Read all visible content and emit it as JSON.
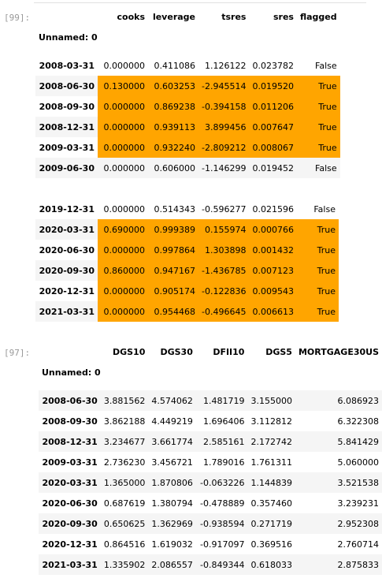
{
  "cell99": {
    "prompt": "[99]:",
    "index_name": "Unnamed: 0",
    "columns": [
      "cooks",
      "leverage",
      "tsres",
      "sres",
      "flagged"
    ],
    "rows": [
      {
        "index": "2008-03-31",
        "cells": [
          "0.000000",
          "0.411086",
          "1.126122",
          "0.023782",
          "False"
        ],
        "hl": false,
        "stripe": false
      },
      {
        "index": "2008-06-30",
        "cells": [
          "0.130000",
          "0.603253",
          "-2.945514",
          "0.019520",
          "True"
        ],
        "hl": true,
        "stripe": true
      },
      {
        "index": "2008-09-30",
        "cells": [
          "0.000000",
          "0.869238",
          "-0.394158",
          "0.011206",
          "True"
        ],
        "hl": true,
        "stripe": false
      },
      {
        "index": "2008-12-31",
        "cells": [
          "0.000000",
          "0.939113",
          "3.899456",
          "0.007647",
          "True"
        ],
        "hl": true,
        "stripe": true
      },
      {
        "index": "2009-03-31",
        "cells": [
          "0.000000",
          "0.932240",
          "-2.809212",
          "0.008067",
          "True"
        ],
        "hl": true,
        "stripe": false
      },
      {
        "index": "2009-06-30",
        "cells": [
          "0.000000",
          "0.606000",
          "-1.146299",
          "0.019452",
          "False"
        ],
        "hl": false,
        "stripe": true
      }
    ],
    "rows2": [
      {
        "index": "2019-12-31",
        "cells": [
          "0.000000",
          "0.514343",
          "-0.596277",
          "0.021596",
          "False"
        ],
        "hl": false,
        "stripe": false
      },
      {
        "index": "2020-03-31",
        "cells": [
          "0.690000",
          "0.999389",
          "0.155974",
          "0.000766",
          "True"
        ],
        "hl": true,
        "stripe": true
      },
      {
        "index": "2020-06-30",
        "cells": [
          "0.000000",
          "0.997864",
          "1.303898",
          "0.001432",
          "True"
        ],
        "hl": true,
        "stripe": false
      },
      {
        "index": "2020-09-30",
        "cells": [
          "0.860000",
          "0.947167",
          "-1.436785",
          "0.007123",
          "True"
        ],
        "hl": true,
        "stripe": true
      },
      {
        "index": "2020-12-31",
        "cells": [
          "0.000000",
          "0.905174",
          "-0.122836",
          "0.009543",
          "True"
        ],
        "hl": true,
        "stripe": false
      },
      {
        "index": "2021-03-31",
        "cells": [
          "0.000000",
          "0.954468",
          "-0.496645",
          "0.006613",
          "True"
        ],
        "hl": true,
        "stripe": true
      }
    ]
  },
  "cell97": {
    "prompt": "[97]:",
    "index_name": "Unnamed: 0",
    "columns": [
      "DGS10",
      "DGS30",
      "DFII10",
      "DGS5",
      "MORTGAGE30US"
    ],
    "rows": [
      {
        "index": "2008-06-30",
        "cells": [
          "3.881562",
          "4.574062",
          "1.481719",
          "3.155000",
          "6.086923"
        ]
      },
      {
        "index": "2008-09-30",
        "cells": [
          "3.862188",
          "4.449219",
          "1.696406",
          "3.112812",
          "6.322308"
        ]
      },
      {
        "index": "2008-12-31",
        "cells": [
          "3.234677",
          "3.661774",
          "2.585161",
          "2.172742",
          "5.841429"
        ]
      },
      {
        "index": "2009-03-31",
        "cells": [
          "2.736230",
          "3.456721",
          "1.789016",
          "1.761311",
          "5.060000"
        ]
      },
      {
        "index": "2020-03-31",
        "cells": [
          "1.365000",
          "1.870806",
          "-0.063226",
          "1.144839",
          "3.521538"
        ]
      },
      {
        "index": "2020-06-30",
        "cells": [
          "0.687619",
          "1.380794",
          "-0.478889",
          "0.357460",
          "3.239231"
        ]
      },
      {
        "index": "2020-09-30",
        "cells": [
          "0.650625",
          "1.362969",
          "-0.938594",
          "0.271719",
          "2.952308"
        ]
      },
      {
        "index": "2020-12-31",
        "cells": [
          "0.864516",
          "1.619032",
          "-0.917097",
          "0.369516",
          "2.760714"
        ]
      },
      {
        "index": "2021-03-31",
        "cells": [
          "1.335902",
          "2.086557",
          "-0.849344",
          "0.618033",
          "2.875833"
        ]
      }
    ]
  }
}
